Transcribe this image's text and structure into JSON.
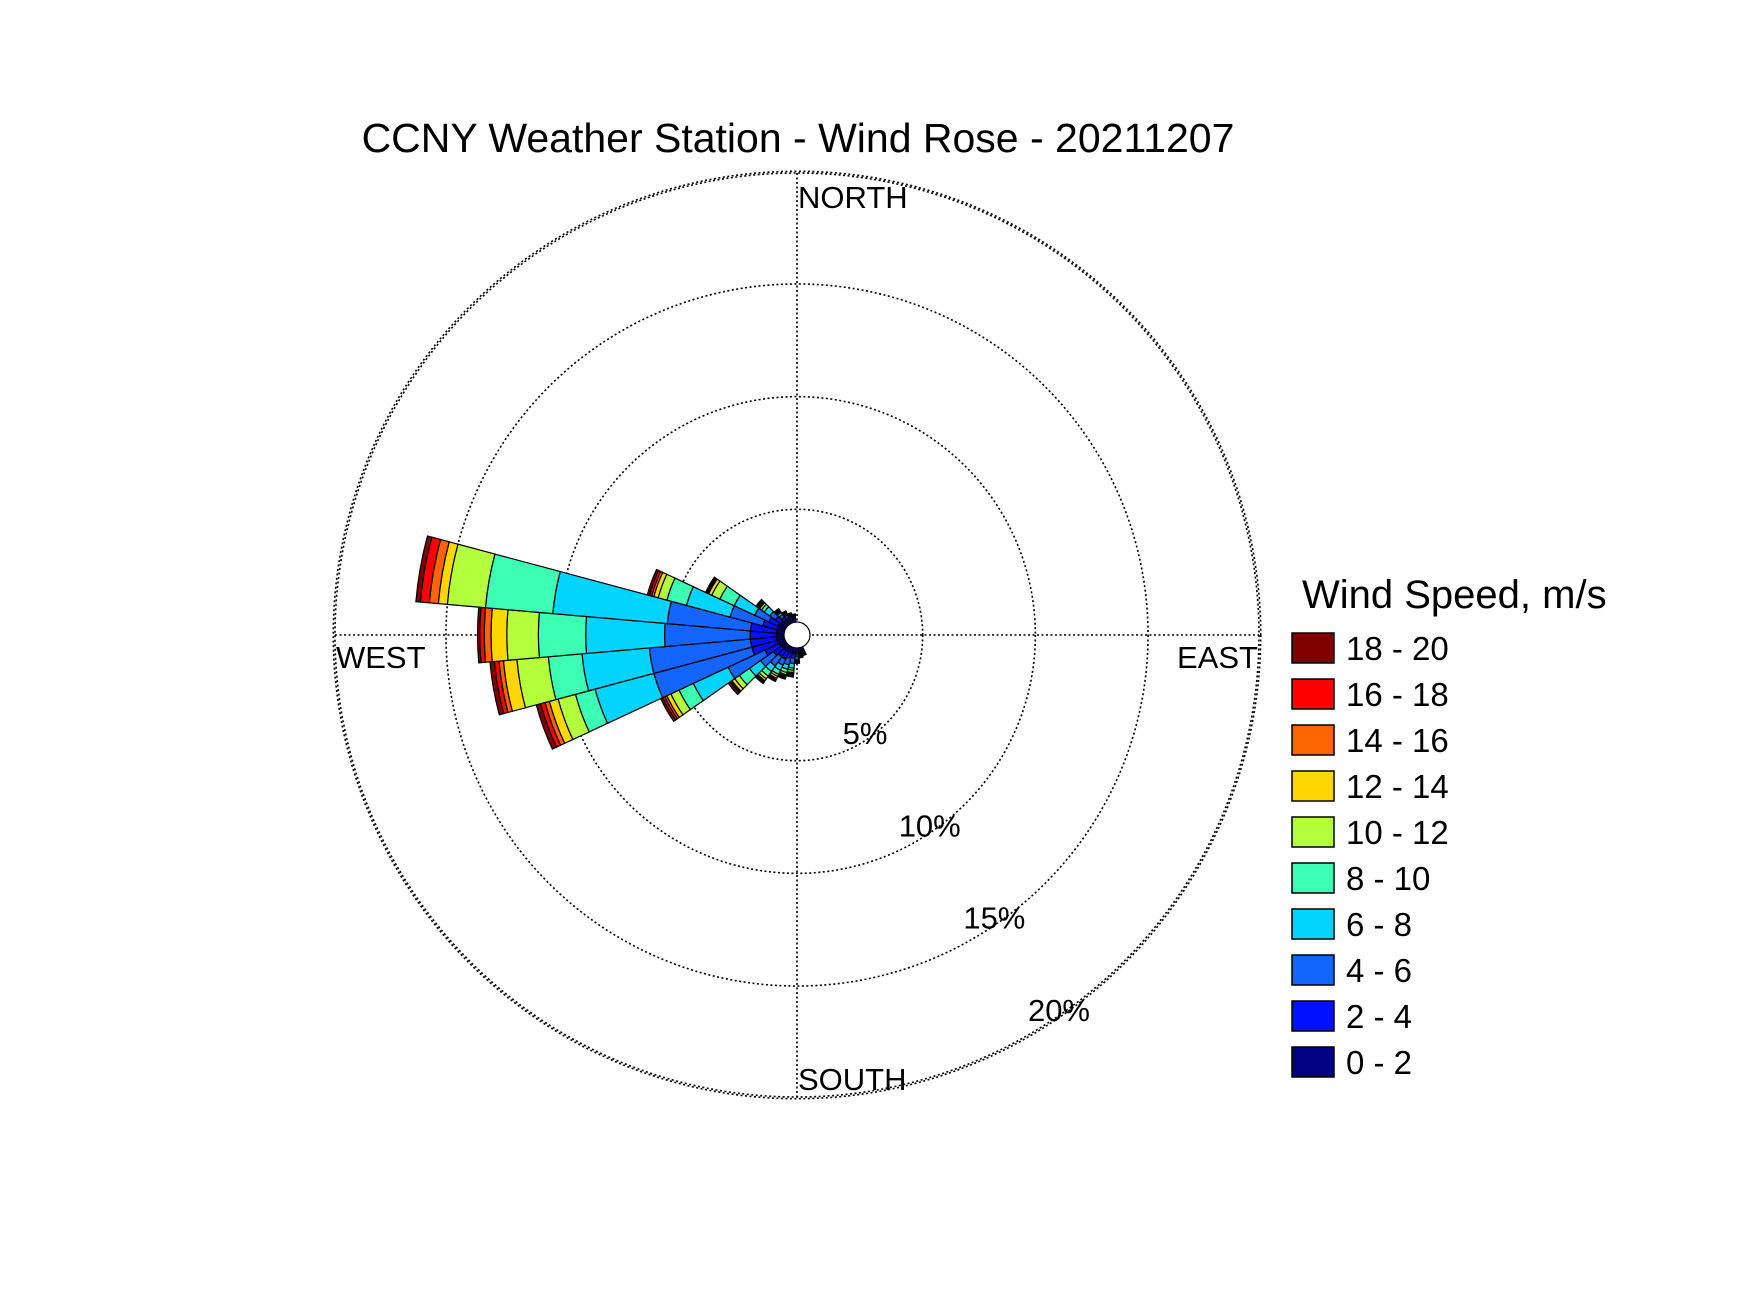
{
  "chart_data": {
    "type": "windrose",
    "title": "CCNY Weather Station - Wind Rose - 20211207",
    "directions": {
      "north": "NORTH",
      "south": "SOUTH",
      "east": "EAST",
      "west": "WEST"
    },
    "rings": [
      5,
      10,
      15,
      20
    ],
    "ring_labels": [
      "5%",
      "10%",
      "15%",
      "20%"
    ],
    "rmax": 20.5,
    "legend": {
      "title": "Wind Speed, m/s",
      "placement": "right",
      "bins": [
        "18 - 20",
        "16 - 18",
        "14 - 16",
        "12 - 14",
        "10 - 12",
        "8 - 10",
        "6 - 8",
        "4 - 6",
        "2 - 4",
        "0 - 2"
      ],
      "colors": [
        "#800000",
        "#ff0000",
        "#ff6400",
        "#ffd700",
        "#b4ff3c",
        "#3cffb4",
        "#00d4ff",
        "#1464ff",
        "#0010ff",
        "#000080"
      ]
    },
    "bins_ascending": [
      "0 - 2",
      "2 - 4",
      "4 - 6",
      "6 - 8",
      "8 - 10",
      "10 - 12",
      "12 - 14",
      "14 - 16",
      "16 - 18",
      "18 - 20"
    ],
    "colors_ascending": [
      "#000080",
      "#0010ff",
      "#1464ff",
      "#00d4ff",
      "#3cffb4",
      "#b4ff3c",
      "#ffd700",
      "#ff6400",
      "#ff0000",
      "#800000"
    ],
    "sector_width_deg": 10,
    "sectors": [
      {
        "dir": 190,
        "cumulative": [
          0.25,
          0.45,
          0.7,
          0.9,
          1.0,
          1.1,
          1.15,
          1.2,
          1.25,
          1.3
        ]
      },
      {
        "dir": 200,
        "cumulative": [
          0.25,
          0.5,
          0.8,
          1.0,
          1.15,
          1.25,
          1.3,
          1.35,
          1.4,
          1.45
        ]
      },
      {
        "dir": 210,
        "cumulative": [
          0.25,
          0.6,
          0.9,
          1.15,
          1.35,
          1.45,
          1.55,
          1.6,
          1.65,
          1.7
        ]
      },
      {
        "dir": 220,
        "cumulative": [
          0.25,
          0.6,
          1.1,
          1.4,
          1.65,
          1.8,
          1.9,
          1.95,
          2.0,
          2.05
        ]
      },
      {
        "dir": 230,
        "cumulative": [
          0.25,
          0.7,
          1.4,
          2.0,
          2.55,
          2.8,
          2.95,
          3.0,
          3.05,
          3.15
        ]
      },
      {
        "dir": 240,
        "cumulative": [
          0.3,
          1.0,
          2.8,
          4.5,
          5.2,
          5.6,
          5.8,
          5.9,
          6.0,
          6.1
        ]
      },
      {
        "dir": 250,
        "cumulative": [
          0.35,
          1.5,
          6.0,
          8.7,
          9.6,
          10.4,
          10.8,
          11.0,
          11.2,
          11.4
        ]
      },
      {
        "dir": 260,
        "cumulative": [
          0.35,
          1.5,
          6.0,
          9.0,
          10.5,
          11.9,
          12.5,
          12.7,
          12.9,
          13.1
        ]
      },
      {
        "dir": 270,
        "cumulative": [
          0.35,
          1.5,
          5.3,
          8.8,
          10.9,
          12.3,
          13.0,
          13.3,
          13.5,
          13.6
        ]
      },
      {
        "dir": 280,
        "cumulative": [
          0.35,
          1.5,
          5.2,
          10.3,
          13.3,
          15.0,
          15.4,
          15.8,
          16.2,
          16.4
        ]
      },
      {
        "dir": 290,
        "cumulative": [
          0.35,
          1.0,
          2.5,
          4.5,
          5.4,
          5.8,
          6.0,
          6.1,
          6.2,
          6.3
        ]
      },
      {
        "dir": 300,
        "cumulative": [
          0.35,
          0.8,
          1.5,
          2.5,
          3.2,
          3.6,
          3.75,
          3.8,
          3.85,
          3.9
        ]
      },
      {
        "dir": 310,
        "cumulative": [
          0.3,
          0.6,
          0.9,
          1.2,
          1.35,
          1.45,
          1.5,
          1.55,
          1.6,
          1.65
        ]
      },
      {
        "dir": 320,
        "cumulative": [
          0.25,
          0.4,
          0.55,
          0.65,
          0.7,
          0.75,
          0.78,
          0.8,
          0.82,
          0.85
        ]
      },
      {
        "dir": 330,
        "cumulative": [
          0.2,
          0.3,
          0.4,
          0.45,
          0.5,
          0.52,
          0.54,
          0.56,
          0.58,
          0.6
        ]
      },
      {
        "dir": 340,
        "cumulative": [
          0.2,
          0.28,
          0.33,
          0.36,
          0.38,
          0.4,
          0.41,
          0.42,
          0.43,
          0.44
        ]
      },
      {
        "dir": 180,
        "cumulative": [
          0.2,
          0.3,
          0.4,
          0.5,
          0.55,
          0.6,
          0.62,
          0.64,
          0.66,
          0.68
        ]
      },
      {
        "dir": 170,
        "cumulative": [
          0.2,
          0.25,
          0.3,
          0.35,
          0.38,
          0.4,
          0.41,
          0.42,
          0.43,
          0.44
        ]
      },
      {
        "dir": 160,
        "cumulative": [
          0.2,
          0.25,
          0.28,
          0.3,
          0.32,
          0.33,
          0.34,
          0.35,
          0.36,
          0.37
        ]
      },
      {
        "dir": 350,
        "cumulative": [
          0.2,
          0.25,
          0.28,
          0.3,
          0.31,
          0.32,
          0.33,
          0.34,
          0.35,
          0.36
        ]
      }
    ]
  }
}
